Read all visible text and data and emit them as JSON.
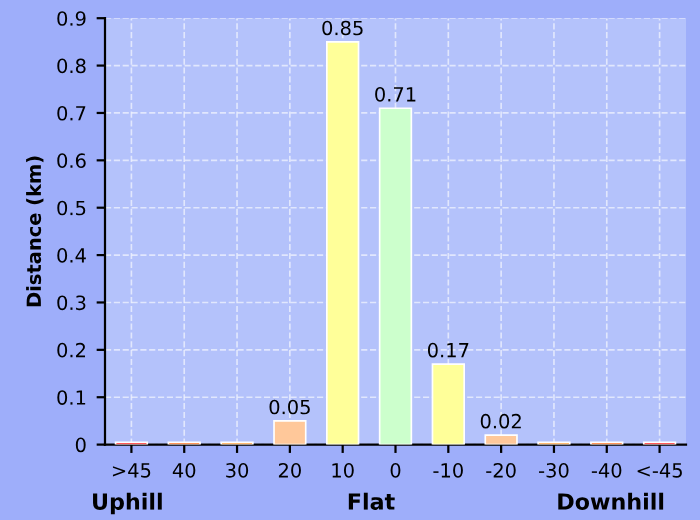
{
  "chart_data": {
    "type": "bar",
    "ylabel": "Distance (km)",
    "categories": [
      ">45",
      "40",
      "30",
      "20",
      "10",
      "0",
      "-10",
      "-20",
      "-30",
      "-40",
      "<-45"
    ],
    "values": [
      0.005,
      0.005,
      0.005,
      0.05,
      0.85,
      0.71,
      0.17,
      0.02,
      0.005,
      0.005,
      0.005
    ],
    "value_labels": [
      null,
      null,
      null,
      "0.05",
      "0.85",
      "0.71",
      "0.17",
      "0.02",
      null,
      null,
      null
    ],
    "colors": [
      "#ff2020",
      "#ff7020",
      "#ffa040",
      "#ffc89a",
      "#ffff99",
      "#ccffcc",
      "#ffff99",
      "#ffc89a",
      "#ffa040",
      "#ff7020",
      "#ff2020"
    ],
    "ylim": [
      0,
      0.9
    ],
    "yticks": [
      0,
      0.1,
      0.2,
      0.3,
      0.4,
      0.5,
      0.6,
      0.7,
      0.8,
      0.9
    ],
    "grid": true,
    "annotations": [
      "Uphill",
      "Flat",
      "Downhill"
    ]
  }
}
